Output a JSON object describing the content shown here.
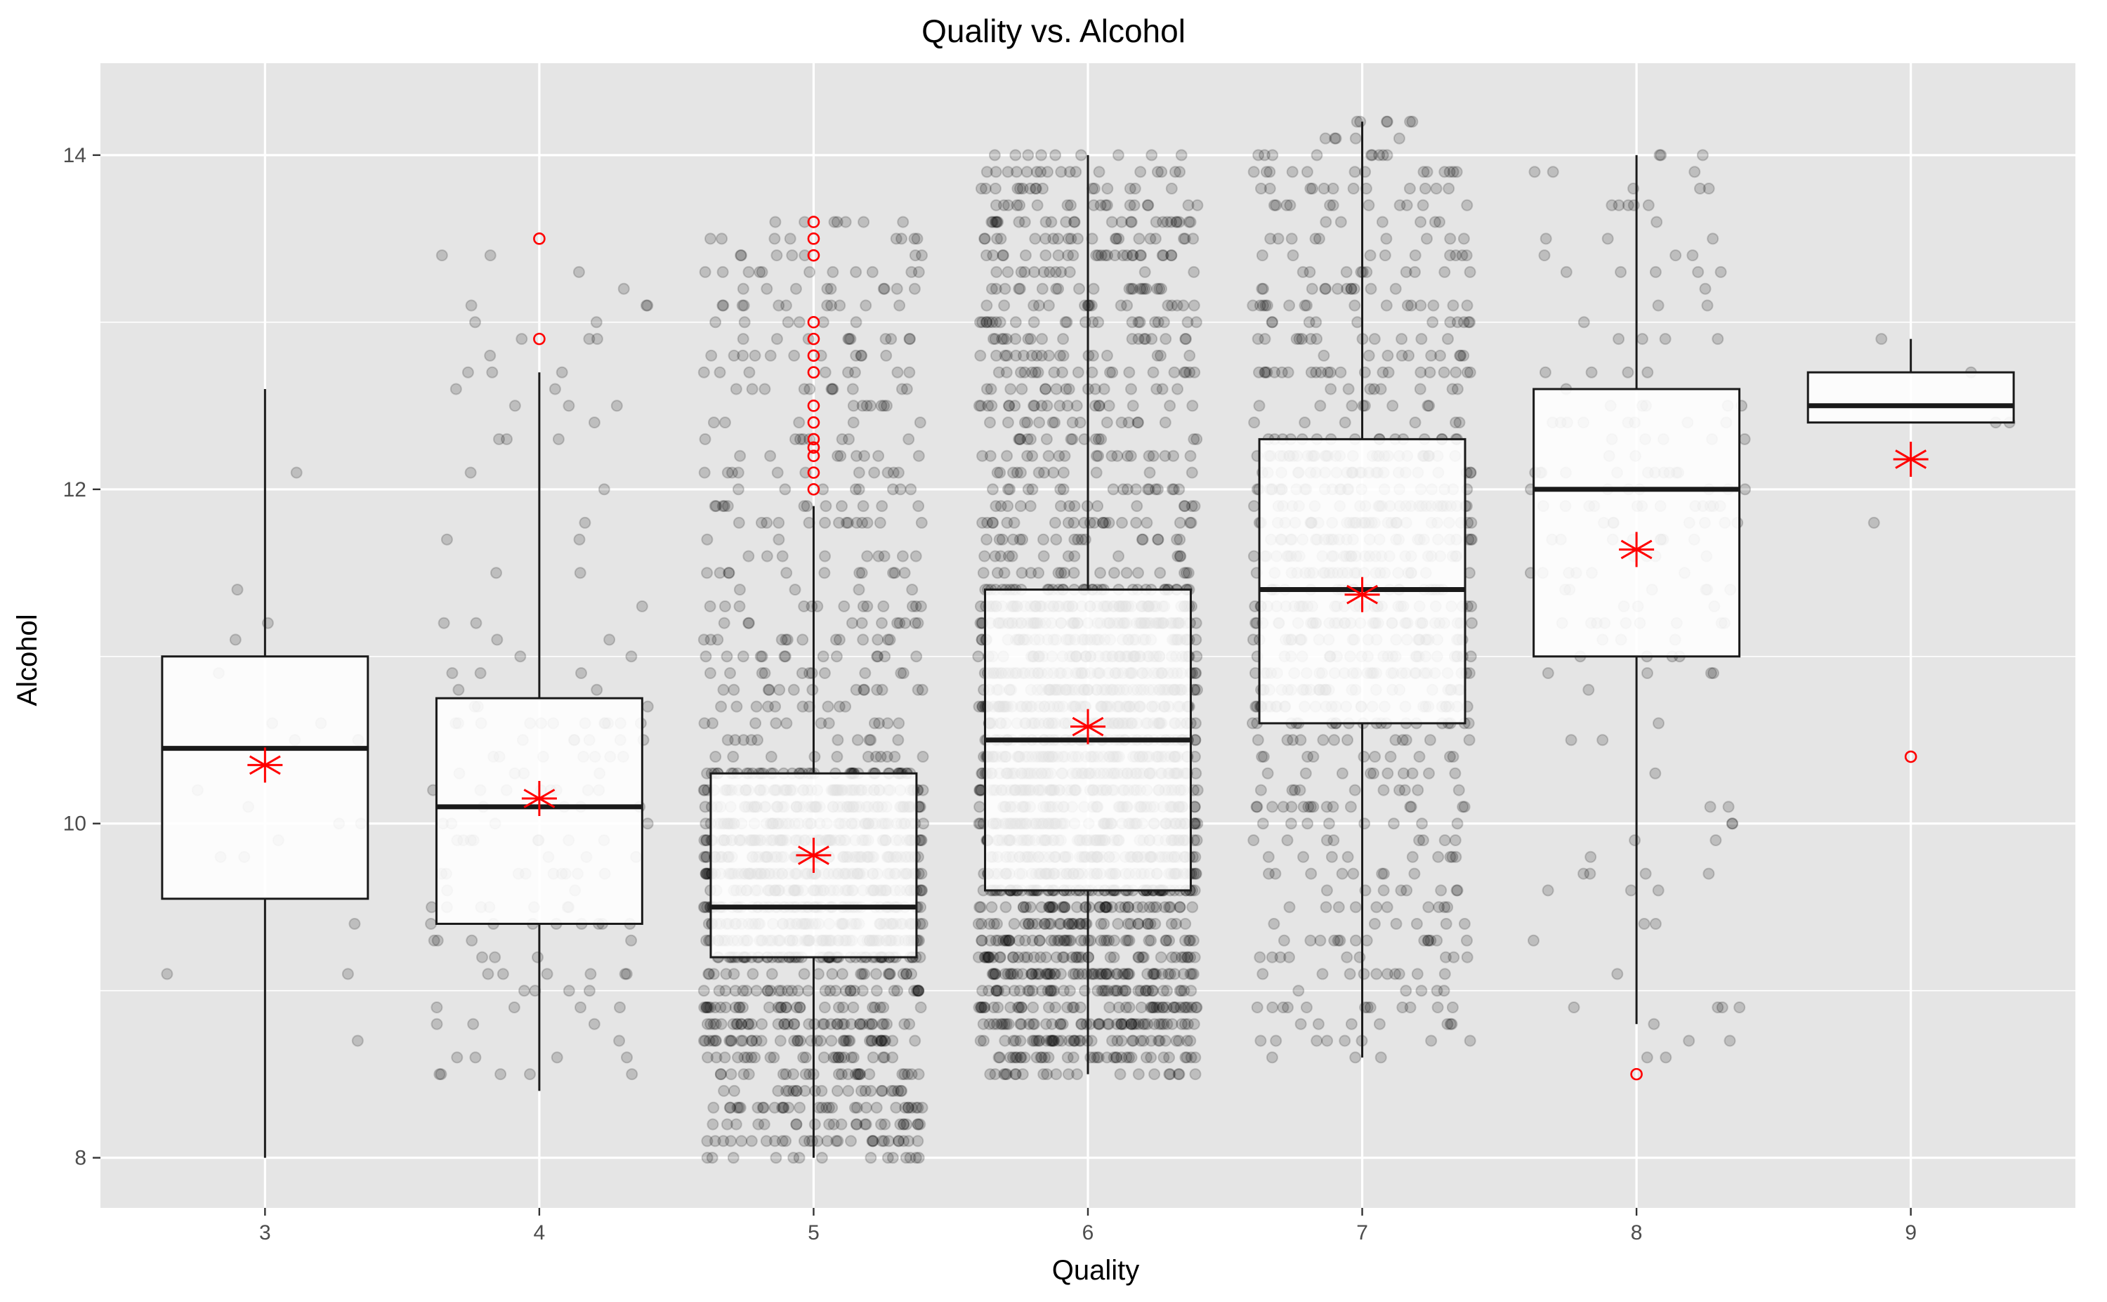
{
  "chart_data": {
    "type": "boxplot",
    "title": "Quality vs. Alcohol",
    "xlabel": "Quality",
    "ylabel": "Alcohol",
    "categories": [
      "3",
      "4",
      "5",
      "6",
      "7",
      "8",
      "9"
    ],
    "yticks": [
      8,
      10,
      12,
      14
    ],
    "ylim": [
      7.7,
      14.55
    ],
    "xlim": [
      2.4,
      9.6
    ],
    "grid": true,
    "colors": {
      "panel": "#e5e5e5",
      "grid": "#ffffff",
      "box_fill": "#ffffff",
      "box_line": "#1a1a1a",
      "point": "#000000",
      "outlier": "#ff0000",
      "mean": "#ff0000"
    },
    "boxes": [
      {
        "x": 3,
        "q1": 9.55,
        "median": 10.45,
        "q3": 11.0,
        "whisker_low": 8.0,
        "whisker_high": 12.6,
        "mean": 10.35,
        "outliers": []
      },
      {
        "x": 4,
        "q1": 9.4,
        "median": 10.1,
        "q3": 10.75,
        "whisker_low": 8.4,
        "whisker_high": 12.7,
        "mean": 10.15,
        "outliers": [
          13.5,
          12.9
        ]
      },
      {
        "x": 5,
        "q1": 9.2,
        "median": 9.5,
        "q3": 10.3,
        "whisker_low": 8.0,
        "whisker_high": 11.9,
        "mean": 9.81,
        "outliers": [
          13.6,
          13.5,
          13.4,
          13.0,
          12.9,
          12.8,
          12.7,
          12.5,
          12.4,
          12.3,
          12.25,
          12.2,
          12.1,
          12.0
        ]
      },
      {
        "x": 6,
        "q1": 9.6,
        "median": 10.5,
        "q3": 11.4,
        "whisker_low": 8.5,
        "whisker_high": 14.0,
        "mean": 10.58,
        "outliers": []
      },
      {
        "x": 7,
        "q1": 10.6,
        "median": 11.4,
        "q3": 12.3,
        "whisker_low": 8.6,
        "whisker_high": 14.2,
        "mean": 11.37,
        "outliers": []
      },
      {
        "x": 8,
        "q1": 11.0,
        "median": 12.0,
        "q3": 12.6,
        "whisker_low": 8.8,
        "whisker_high": 14.0,
        "mean": 11.64,
        "outliers": [
          8.5
        ]
      },
      {
        "x": 9,
        "q1": 12.4,
        "median": 12.5,
        "q3": 12.7,
        "whisker_low": 12.4,
        "whisker_high": 12.9,
        "mean": 12.18,
        "outliers": [
          10.4
        ]
      }
    ],
    "points": [
      {
        "x": 3,
        "n": 20,
        "lo": 8.0,
        "hi": 12.6,
        "q1": 9.55,
        "q3": 11.0,
        "jitter": 0.4
      },
      {
        "x": 4,
        "n": 163,
        "lo": 8.4,
        "hi": 13.5,
        "q1": 9.4,
        "q3": 10.75,
        "jitter": 0.4
      },
      {
        "x": 5,
        "n": 1457,
        "lo": 8.0,
        "hi": 13.6,
        "q1": 9.2,
        "q3": 10.3,
        "jitter": 0.4
      },
      {
        "x": 6,
        "n": 2198,
        "lo": 8.5,
        "hi": 14.0,
        "q1": 9.6,
        "q3": 11.4,
        "jitter": 0.4
      },
      {
        "x": 7,
        "n": 880,
        "lo": 8.6,
        "hi": 14.2,
        "q1": 10.6,
        "q3": 12.3,
        "jitter": 0.4
      },
      {
        "x": 8,
        "n": 175,
        "lo": 8.5,
        "hi": 14.0,
        "q1": 11.0,
        "q3": 12.6,
        "jitter": 0.4
      },
      {
        "x": 9,
        "n": 5,
        "lo": 10.4,
        "hi": 12.9,
        "q1": 12.4,
        "q3": 12.7,
        "jitter": 0.4
      }
    ]
  }
}
